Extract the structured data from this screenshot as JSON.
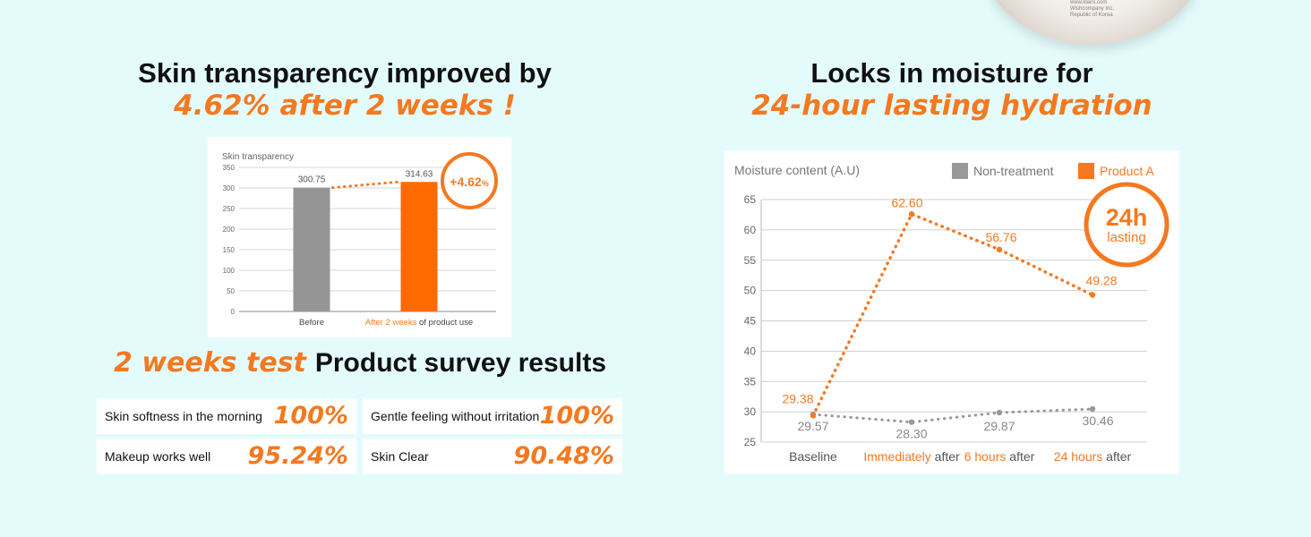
{
  "left": {
    "headline_line1": "Skin transparency improved by",
    "headline_line2": "4.62% after 2 weeks !"
  },
  "right": {
    "headline_line1": "Locks in moisture for",
    "headline_line2": "24-hour lasting hydration"
  },
  "survey": {
    "title_orange": "2 weeks test",
    "title_black": "Product survey results",
    "items": [
      {
        "label": "Skin softness in the morning",
        "value": "100%"
      },
      {
        "label": "Gentle feeling without irritation",
        "value": "100%"
      },
      {
        "label": "Makeup works well",
        "value": "95.24%"
      },
      {
        "label": "Skin Clear",
        "value": "90.48%"
      }
    ]
  },
  "jar_label": [
    "www.klairs.com",
    "Wishcompany Inc.",
    "Republic of Korea"
  ],
  "colors": {
    "accent": "#f47920",
    "gray": "#959595",
    "background": "#e4fbfc"
  },
  "chart_data": [
    {
      "type": "bar",
      "ylabel": "Skin transparency",
      "ylim": [
        0,
        350
      ],
      "yticks": [
        0,
        50,
        100,
        150,
        200,
        250,
        300,
        350
      ],
      "categories": [
        {
          "highlight": "",
          "rest": "Before"
        },
        {
          "highlight": "After 2 weeks",
          "rest": " of product use"
        }
      ],
      "values": [
        300.75,
        314.63
      ],
      "data_labels": [
        "300.75",
        "314.63"
      ],
      "bar_colors": [
        "#959595",
        "#ff6a00"
      ],
      "badge": {
        "main": "+4.62",
        "unit": "%"
      }
    },
    {
      "type": "line",
      "ylabel": "Moisture content (A.U)",
      "ylim": [
        25,
        65
      ],
      "yticks": [
        25,
        30,
        35,
        40,
        45,
        50,
        55,
        60,
        65
      ],
      "legend_position": "top-right",
      "categories": [
        {
          "highlight": "",
          "rest": "Baseline"
        },
        {
          "highlight": "Immediately",
          "rest": " after"
        },
        {
          "highlight": "6 hours",
          "rest": " after"
        },
        {
          "highlight": "24 hours",
          "rest": " after"
        }
      ],
      "series": [
        {
          "name": "Non-treatment",
          "color": "#999999",
          "values": [
            29.57,
            28.3,
            29.87,
            30.46
          ],
          "labels": [
            "29.57",
            "28.30",
            "29.87",
            "30.46"
          ]
        },
        {
          "name": "Product A",
          "color": "#f47920",
          "values": [
            29.38,
            62.6,
            56.76,
            49.28
          ],
          "labels": [
            "29.38",
            "62.60",
            "56.76",
            "49.28"
          ]
        }
      ],
      "badge": {
        "main": "24h",
        "sub": "lasting"
      }
    }
  ]
}
